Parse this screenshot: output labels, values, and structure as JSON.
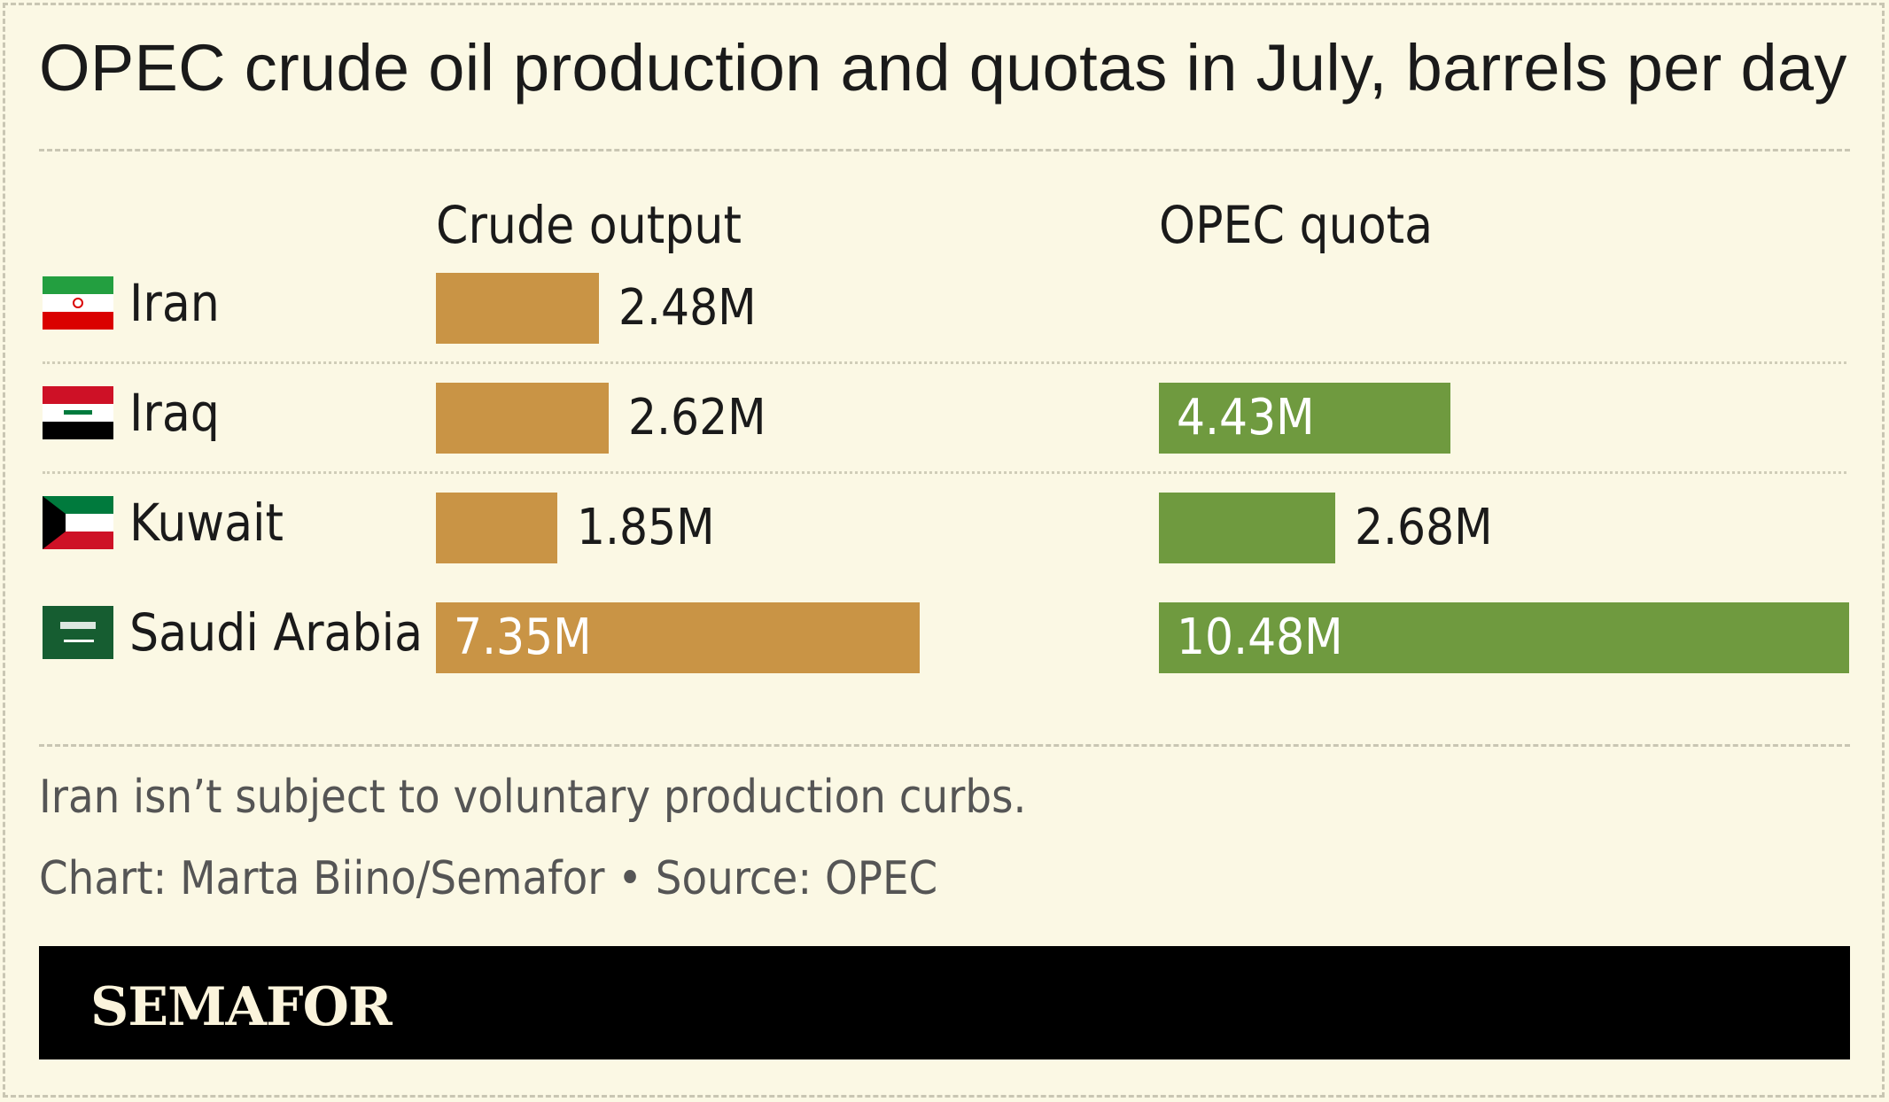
{
  "title": "OPEC crude oil production and quotas in July, barrels per day",
  "colors": {
    "crude": "#c99445",
    "quota": "#6f9a3f",
    "background": "#fbf8e4"
  },
  "chart_data": {
    "type": "bar",
    "title": "OPEC crude oil production and quotas in July, barrels per day",
    "categories": [
      "Iran",
      "Iraq",
      "Kuwait",
      "Saudi Arabia"
    ],
    "series": [
      {
        "name": "Crude output",
        "values": [
          2.48,
          2.62,
          1.85,
          7.35
        ],
        "labels": [
          "2.48M",
          "2.62M",
          "1.85M",
          "7.35M"
        ]
      },
      {
        "name": "OPEC quota",
        "values": [
          null,
          4.43,
          2.68,
          10.48
        ],
        "labels": [
          "",
          "4.43M",
          "2.68M",
          "10.48M"
        ]
      }
    ],
    "unit": "M barrels per day",
    "orientation": "horizontal",
    "grid": false
  },
  "rows": [
    {
      "country": "Iran",
      "flag": "iran-flag-icon"
    },
    {
      "country": "Iraq",
      "flag": "iraq-flag-icon"
    },
    {
      "country": "Kuwait",
      "flag": "kuwait-flag-icon"
    },
    {
      "country": "Saudi Arabia",
      "flag": "saudi-arabia-flag-icon"
    }
  ],
  "note": "Iran isn’t subject to voluntary production curbs.",
  "source": "Chart: Marta Biino/Semafor • Source: OPEC",
  "brand": "SEMAFOR"
}
